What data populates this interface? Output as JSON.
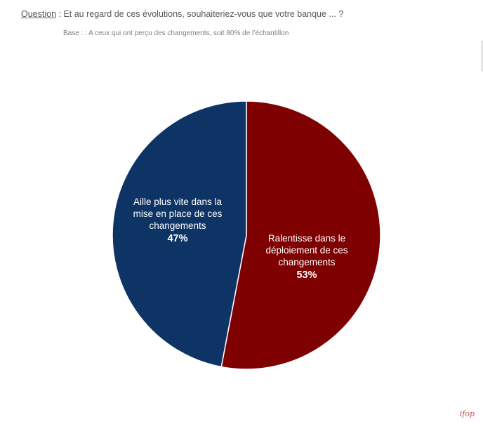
{
  "header": {
    "question_label": "Question",
    "question_text": " :  Et au regard de ces évolutions, souhaiteriez-vous que votre banque ... ?",
    "base_text": "Base : : A ceux qui ont perçu des changements, soit 80% de l’échantillon"
  },
  "chart_data": {
    "type": "pie",
    "slices": [
      {
        "label": "Ralentisse dans le déploiement de ces changements",
        "value": 53,
        "value_label": "53%",
        "color": "#7f0000"
      },
      {
        "label": "Aille plus vite dans la mise en place de ces changements",
        "value": 47,
        "value_label": "47%",
        "color": "#0e3465"
      }
    ]
  },
  "labels": {
    "slow": {
      "line1": "Ralentisse dans le",
      "line2": "déploiement de ces",
      "line3": "changements",
      "pct": "53%"
    },
    "fast": {
      "line1": "Aille plus vite dans la",
      "line2": "mise en place de ces",
      "line3": "changements",
      "pct": "47%"
    }
  },
  "footer": {
    "logo": "ifop"
  }
}
